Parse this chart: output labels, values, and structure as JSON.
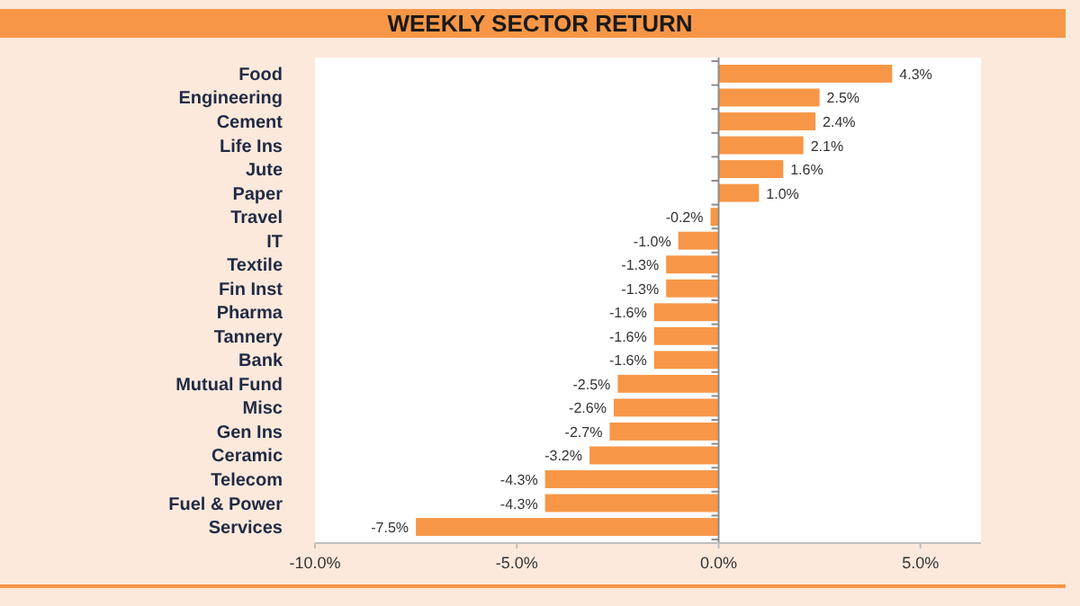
{
  "chart_data": {
    "type": "bar",
    "orientation": "horizontal",
    "title": "WEEKLY SECTOR RETURN",
    "categories": [
      "Food",
      "Engineering",
      "Cement",
      "Life Ins",
      "Jute",
      "Paper",
      "Travel",
      "IT",
      "Textile",
      "Fin Inst",
      "Pharma",
      "Tannery",
      "Bank",
      "Mutual Fund",
      "Misc",
      "Gen Ins",
      "Ceramic",
      "Telecom",
      "Fuel & Power",
      "Services"
    ],
    "values": [
      4.3,
      2.5,
      2.4,
      2.1,
      1.6,
      1.0,
      -0.2,
      -1.0,
      -1.3,
      -1.3,
      -1.6,
      -1.6,
      -1.6,
      -2.5,
      -2.6,
      -2.7,
      -3.2,
      -4.3,
      -4.3,
      -7.5
    ],
    "value_labels": [
      "4.3%",
      "2.5%",
      "2.4%",
      "2.1%",
      "1.6%",
      "1.0%",
      "-0.2%",
      "-1.0%",
      "-1.3%",
      "-1.3%",
      "-1.6%",
      "-1.6%",
      "-1.6%",
      "-2.5%",
      "-2.6%",
      "-2.7%",
      "-3.2%",
      "-4.3%",
      "-4.3%",
      "-7.5%"
    ],
    "color": "#f79646",
    "xlim": [
      -10,
      6.5
    ],
    "xticks": [
      {
        "value": -10,
        "label": "-10.0%"
      },
      {
        "value": -5,
        "label": "-5.0%"
      },
      {
        "value": 0,
        "label": "0.0%"
      },
      {
        "value": 5,
        "label": "5.0%"
      }
    ],
    "tick_labels": "x"
  }
}
